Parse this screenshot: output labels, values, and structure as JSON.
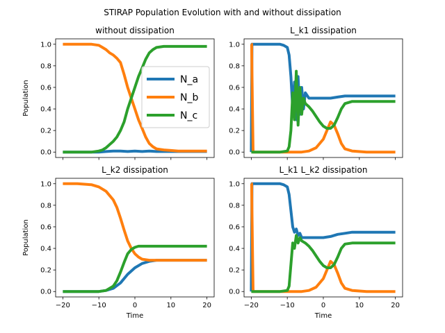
{
  "figure": {
    "suptitle": "STIRAP Population Evolution with and without dissipation"
  },
  "colors": {
    "N_a": "#1f77b4",
    "N_b": "#ff7f0e",
    "N_c": "#2ca02c"
  },
  "chart_data": [
    {
      "type": "line",
      "title": "without dissipation",
      "xlabel": "",
      "ylabel": "Population",
      "xlim": [
        -22,
        22
      ],
      "ylim": [
        -0.05,
        1.05
      ],
      "xticks": [],
      "yticks": [
        "0.0",
        "0.2",
        "0.4",
        "0.6",
        "0.8",
        "1.0"
      ],
      "legend": {
        "placement": "center-right",
        "entries": [
          "N_a",
          "N_b",
          "N_c"
        ]
      },
      "series": [
        {
          "name": "N_a",
          "x": [
            -20,
            -16,
            -12,
            -10,
            -8,
            -6,
            -4,
            -2,
            0,
            2,
            4,
            6,
            8,
            12,
            16,
            20
          ],
          "y": [
            0,
            0,
            0,
            0,
            0.005,
            0.01,
            0.01,
            0.005,
            0.01,
            0.005,
            0.01,
            0.005,
            0.005,
            0.005,
            0.005,
            0.005
          ]
        },
        {
          "name": "N_b",
          "x": [
            -20,
            -16,
            -12,
            -10,
            -9,
            -8,
            -7,
            -6,
            -5,
            -4,
            -3,
            -2,
            -1,
            0,
            1,
            2,
            3,
            4,
            5,
            6,
            8,
            10,
            12,
            16,
            20
          ],
          "y": [
            1.0,
            1.0,
            1.0,
            0.99,
            0.97,
            0.95,
            0.92,
            0.9,
            0.87,
            0.83,
            0.72,
            0.6,
            0.5,
            0.4,
            0.3,
            0.22,
            0.14,
            0.08,
            0.05,
            0.03,
            0.02,
            0.015,
            0.01,
            0.01,
            0.01
          ]
        },
        {
          "name": "N_c",
          "x": [
            -20,
            -16,
            -12,
            -10,
            -9,
            -8,
            -7,
            -6,
            -5,
            -4,
            -3,
            -2,
            -1,
            0,
            1,
            2,
            3,
            4,
            5,
            6,
            8,
            10,
            12,
            16,
            20
          ],
          "y": [
            0,
            0,
            0,
            0.01,
            0.02,
            0.04,
            0.07,
            0.1,
            0.14,
            0.2,
            0.28,
            0.4,
            0.5,
            0.6,
            0.7,
            0.78,
            0.86,
            0.92,
            0.95,
            0.97,
            0.98,
            0.98,
            0.98,
            0.98,
            0.98
          ]
        }
      ]
    },
    {
      "type": "line",
      "title": "L_k1 dissipation",
      "xlabel": "",
      "ylabel": "",
      "xlim": [
        -22,
        22
      ],
      "ylim": [
        -0.05,
        1.05
      ],
      "xticks": [],
      "yticks": [
        "0.0",
        "0.2",
        "0.4",
        "0.6",
        "0.8",
        "1.0"
      ],
      "series": [
        {
          "name": "N_a",
          "x": [
            -20,
            -19.8,
            -19.5,
            -16,
            -12,
            -11,
            -10,
            -9.5,
            -9,
            -8.5,
            -8,
            -7.5,
            -7,
            -6.5,
            -6,
            -5.5,
            -5,
            -4,
            -3,
            -2,
            -1,
            0,
            2,
            4,
            6,
            8,
            12,
            16,
            20
          ],
          "y": [
            0,
            1.0,
            1.0,
            1.0,
            1.0,
            0.99,
            0.97,
            0.9,
            0.7,
            0.4,
            0.65,
            0.3,
            0.7,
            0.35,
            0.6,
            0.4,
            0.55,
            0.5,
            0.5,
            0.5,
            0.5,
            0.5,
            0.5,
            0.51,
            0.52,
            0.52,
            0.52,
            0.52,
            0.52
          ]
        },
        {
          "name": "N_b",
          "x": [
            -20,
            -19.9,
            -19.7,
            -19.5,
            -16,
            -12,
            -10,
            -8,
            -6,
            -4,
            -2,
            0,
            1,
            2,
            3,
            4,
            5,
            6,
            8,
            12,
            16,
            20
          ],
          "y": [
            1.0,
            1.0,
            0.5,
            0,
            0,
            0,
            0,
            0,
            0,
            0.01,
            0.04,
            0.12,
            0.2,
            0.28,
            0.25,
            0.17,
            0.08,
            0.03,
            0.01,
            0,
            0,
            0
          ]
        },
        {
          "name": "N_c",
          "x": [
            -20,
            -19.8,
            -16,
            -12,
            -10,
            -9.5,
            -9,
            -8.5,
            -8,
            -7.5,
            -7,
            -6.5,
            -6,
            -5.5,
            -5,
            -4,
            -3,
            -2,
            -1,
            0,
            1,
            2,
            3,
            4,
            5,
            6,
            8,
            12,
            16,
            20
          ],
          "y": [
            0,
            0,
            0,
            0,
            0.01,
            0.05,
            0.2,
            0.55,
            0.3,
            0.75,
            0.25,
            0.6,
            0.35,
            0.5,
            0.45,
            0.42,
            0.38,
            0.33,
            0.28,
            0.24,
            0.22,
            0.22,
            0.25,
            0.32,
            0.4,
            0.45,
            0.47,
            0.47,
            0.47,
            0.47
          ]
        }
      ]
    },
    {
      "type": "line",
      "title": "L_k2 dissipation",
      "xlabel": "Time",
      "ylabel": "Population",
      "xlim": [
        -22,
        22
      ],
      "ylim": [
        -0.05,
        1.05
      ],
      "xticks": [
        "−20",
        "−10",
        "0",
        "10",
        "20"
      ],
      "yticks": [
        "0.0",
        "0.2",
        "0.4",
        "0.6",
        "0.8",
        "1.0"
      ],
      "series": [
        {
          "name": "N_a",
          "x": [
            -20,
            -16,
            -12,
            -10,
            -8,
            -6,
            -4,
            -2,
            0,
            2,
            4,
            6,
            8,
            12,
            16,
            20
          ],
          "y": [
            0,
            0,
            0,
            0,
            0.01,
            0.03,
            0.08,
            0.16,
            0.22,
            0.26,
            0.28,
            0.29,
            0.29,
            0.29,
            0.29,
            0.29
          ]
        },
        {
          "name": "N_b",
          "x": [
            -20,
            -16,
            -12,
            -10,
            -8,
            -6,
            -5,
            -4,
            -3,
            -2,
            -1,
            0,
            1,
            2,
            4,
            6,
            8,
            12,
            16,
            20
          ],
          "y": [
            1.0,
            1.0,
            0.99,
            0.97,
            0.93,
            0.85,
            0.78,
            0.68,
            0.57,
            0.47,
            0.4,
            0.35,
            0.32,
            0.3,
            0.29,
            0.29,
            0.29,
            0.29,
            0.29,
            0.29
          ]
        },
        {
          "name": "N_c",
          "x": [
            -20,
            -16,
            -12,
            -10,
            -8,
            -6,
            -5,
            -4,
            -3,
            -2,
            -1,
            0,
            1,
            2,
            4,
            6,
            8,
            12,
            16,
            20
          ],
          "y": [
            0,
            0,
            0,
            0,
            0.01,
            0.05,
            0.1,
            0.18,
            0.27,
            0.35,
            0.39,
            0.41,
            0.42,
            0.42,
            0.42,
            0.42,
            0.42,
            0.42,
            0.42,
            0.42
          ]
        }
      ]
    },
    {
      "type": "line",
      "title": "L_k1 L_k2 dissipation",
      "xlabel": "Time",
      "ylabel": "",
      "xlim": [
        -22,
        22
      ],
      "ylim": [
        -0.05,
        1.05
      ],
      "xticks": [
        "−20",
        "−10",
        "0",
        "10",
        "20"
      ],
      "yticks": [
        "0.0",
        "0.2",
        "0.4",
        "0.6",
        "0.8",
        "1.0"
      ],
      "series": [
        {
          "name": "N_a",
          "x": [
            -20,
            -19.8,
            -19.5,
            -16,
            -12,
            -11,
            -10,
            -9.5,
            -9,
            -8.5,
            -8,
            -7.5,
            -7,
            -6.5,
            -6,
            -5,
            -4,
            -2,
            0,
            2,
            4,
            6,
            8,
            12,
            16,
            20
          ],
          "y": [
            0,
            1.0,
            1.0,
            1.0,
            1.0,
            0.99,
            0.97,
            0.9,
            0.75,
            0.6,
            0.55,
            0.58,
            0.52,
            0.54,
            0.5,
            0.5,
            0.5,
            0.5,
            0.5,
            0.51,
            0.53,
            0.54,
            0.55,
            0.55,
            0.55,
            0.55
          ]
        },
        {
          "name": "N_b",
          "x": [
            -20,
            -19.9,
            -19.7,
            -19.5,
            -16,
            -12,
            -10,
            -8,
            -6,
            -4,
            -2,
            0,
            1,
            2,
            3,
            4,
            5,
            6,
            8,
            12,
            16,
            20
          ],
          "y": [
            1.0,
            1.0,
            0.5,
            0,
            0,
            0,
            0,
            0,
            0,
            0.01,
            0.04,
            0.12,
            0.2,
            0.28,
            0.25,
            0.17,
            0.08,
            0.03,
            0.01,
            0,
            0,
            0
          ]
        },
        {
          "name": "N_c",
          "x": [
            -20,
            -19.8,
            -16,
            -12,
            -10,
            -9.5,
            -9,
            -8.5,
            -8,
            -7.5,
            -7,
            -6.5,
            -6,
            -5,
            -4,
            -3,
            -2,
            -1,
            0,
            1,
            2,
            3,
            4,
            5,
            6,
            8,
            12,
            16,
            20
          ],
          "y": [
            0,
            0,
            0,
            0,
            0.01,
            0.05,
            0.25,
            0.45,
            0.4,
            0.52,
            0.45,
            0.5,
            0.47,
            0.45,
            0.42,
            0.38,
            0.33,
            0.28,
            0.24,
            0.22,
            0.22,
            0.25,
            0.32,
            0.4,
            0.44,
            0.45,
            0.45,
            0.45,
            0.45
          ]
        }
      ]
    }
  ]
}
